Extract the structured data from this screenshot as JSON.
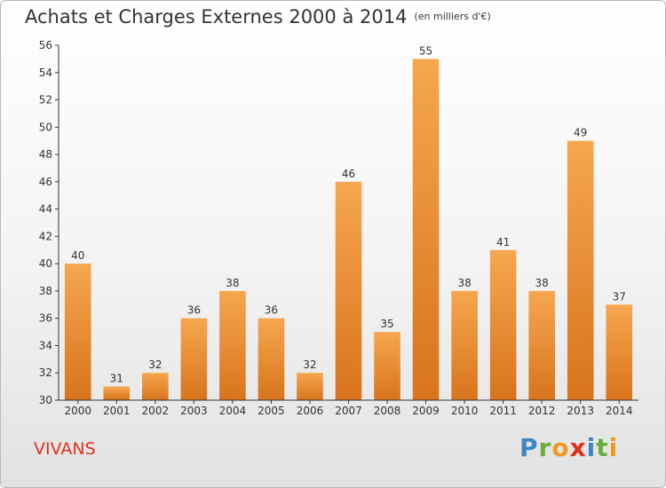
{
  "header": {
    "title": "Achats et Charges Externes 2000 à 2014",
    "subtitle": "(en milliers d'€)"
  },
  "footer": {
    "commune": "VIVANS",
    "logo": "Proxiti"
  },
  "chart_data": {
    "type": "bar",
    "title": "Achats et Charges Externes 2000 à 2014",
    "subtitle": "(en milliers d'€)",
    "xlabel": "",
    "ylabel": "",
    "categories": [
      "2000",
      "2001",
      "2002",
      "2003",
      "2004",
      "2005",
      "2006",
      "2007",
      "2008",
      "2009",
      "2010",
      "2011",
      "2012",
      "2013",
      "2014"
    ],
    "values": [
      40,
      31,
      32,
      36,
      38,
      36,
      32,
      46,
      35,
      55,
      38,
      41,
      38,
      49,
      37
    ],
    "ylim": [
      30,
      56
    ],
    "yticks": [
      30,
      32,
      34,
      36,
      38,
      40,
      42,
      44,
      46,
      48,
      50,
      52,
      54,
      56
    ],
    "grid": false,
    "legend": "none",
    "colors": {
      "bar_light": "#f6a74f",
      "bar_dark": "#d8741c",
      "axis": "#333333"
    }
  }
}
